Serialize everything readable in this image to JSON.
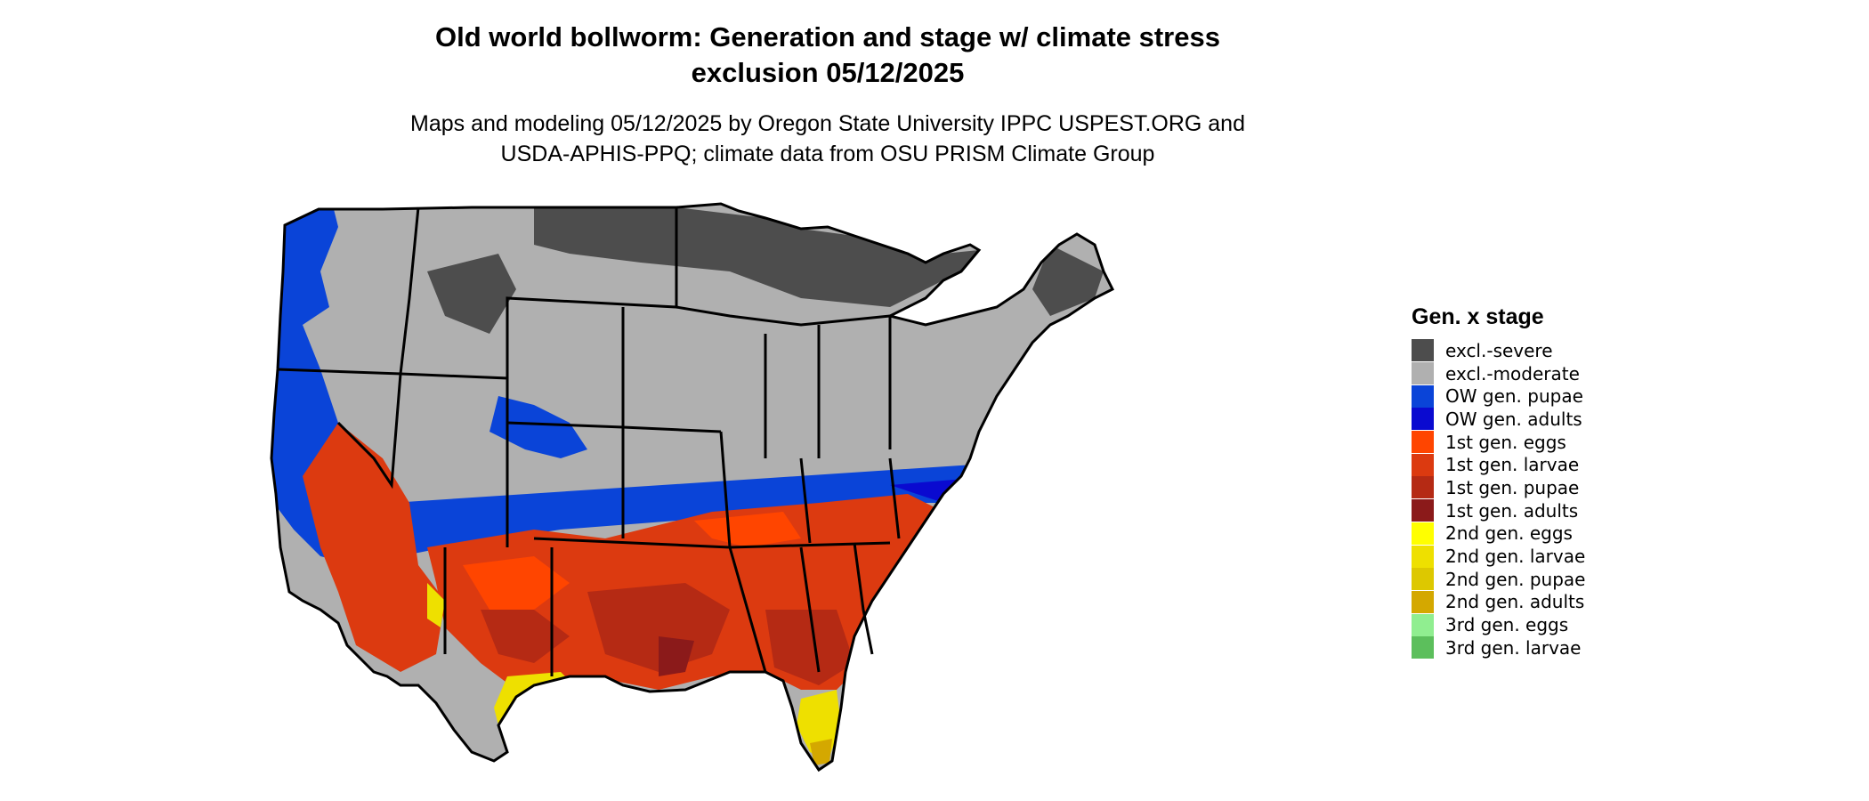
{
  "title_line1": "Old world bollworm: Generation and stage w/ climate stress",
  "title_line2": "exclusion 05/12/2025",
  "subtitle_line1": "Maps and modeling 05/12/2025 by Oregon State University IPPC USPEST.ORG and",
  "subtitle_line2": "USDA-APHIS-PPQ; climate data from OSU PRISM Climate Group",
  "legend": {
    "title": "Gen. x stage",
    "items": [
      {
        "label": "excl.-severe",
        "color": "#4d4d4d"
      },
      {
        "label": "excl.-moderate",
        "color": "#b0b0b0"
      },
      {
        "label": "OW gen. pupae",
        "color": "#0a44d8"
      },
      {
        "label": "OW gen. adults",
        "color": "#0a0ad0"
      },
      {
        "label": "1st gen. eggs",
        "color": "#ff4500"
      },
      {
        "label": "1st gen. larvae",
        "color": "#dc3a10"
      },
      {
        "label": "1st gen. pupae",
        "color": "#b52a14"
      },
      {
        "label": "1st gen. adults",
        "color": "#8b1a1a"
      },
      {
        "label": "2nd gen. eggs",
        "color": "#ffff00"
      },
      {
        "label": "2nd gen. larvae",
        "color": "#eee000"
      },
      {
        "label": "2nd gen. pupae",
        "color": "#ddc800"
      },
      {
        "label": "2nd gen. adults",
        "color": "#d4a800"
      },
      {
        "label": "3rd gen. eggs",
        "color": "#90ee90"
      },
      {
        "label": "3rd gen. larvae",
        "color": "#5cbf5c"
      }
    ]
  }
}
